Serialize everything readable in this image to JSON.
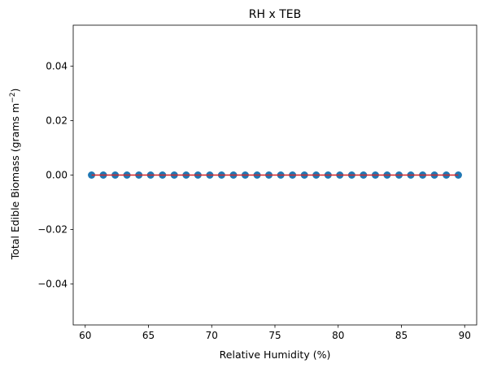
{
  "chart_data": {
    "type": "scatter",
    "title": "RH x TEB",
    "xlabel": "Relative Humidity (%)",
    "ylabel_main": "Total Edible Biomass (grams m",
    "ylabel_sup": "−2",
    "ylabel_close": ")",
    "xlim": [
      59.05,
      90.95
    ],
    "ylim": [
      -0.055,
      0.055
    ],
    "xticks": [
      60,
      65,
      70,
      75,
      80,
      85,
      90
    ],
    "yticks": [
      -0.04,
      -0.02,
      0.0,
      0.02,
      0.04
    ],
    "ytick_labels": [
      "−0.04",
      "−0.02",
      "0.00",
      "0.02",
      "0.04"
    ],
    "grid": false,
    "series": [
      {
        "kind": "scatter",
        "color": "#1f77b4",
        "x": [
          60.5,
          61.43,
          62.37,
          63.3,
          64.24,
          65.17,
          66.11,
          67.04,
          67.98,
          68.91,
          69.85,
          70.78,
          71.72,
          72.65,
          73.59,
          74.52,
          75.46,
          76.39,
          77.33,
          78.26,
          79.2,
          80.13,
          81.07,
          82.0,
          82.94,
          83.87,
          84.81,
          85.74,
          86.68,
          87.61,
          88.55,
          89.5
        ],
        "y": [
          0,
          0,
          0,
          0,
          0,
          0,
          0,
          0,
          0,
          0,
          0,
          0,
          0,
          0,
          0,
          0,
          0,
          0,
          0,
          0,
          0,
          0,
          0,
          0,
          0,
          0,
          0,
          0,
          0,
          0,
          0,
          0
        ]
      },
      {
        "kind": "line",
        "color": "#d62728",
        "x": [
          60.5,
          89.5
        ],
        "y": [
          0,
          0
        ]
      }
    ]
  }
}
